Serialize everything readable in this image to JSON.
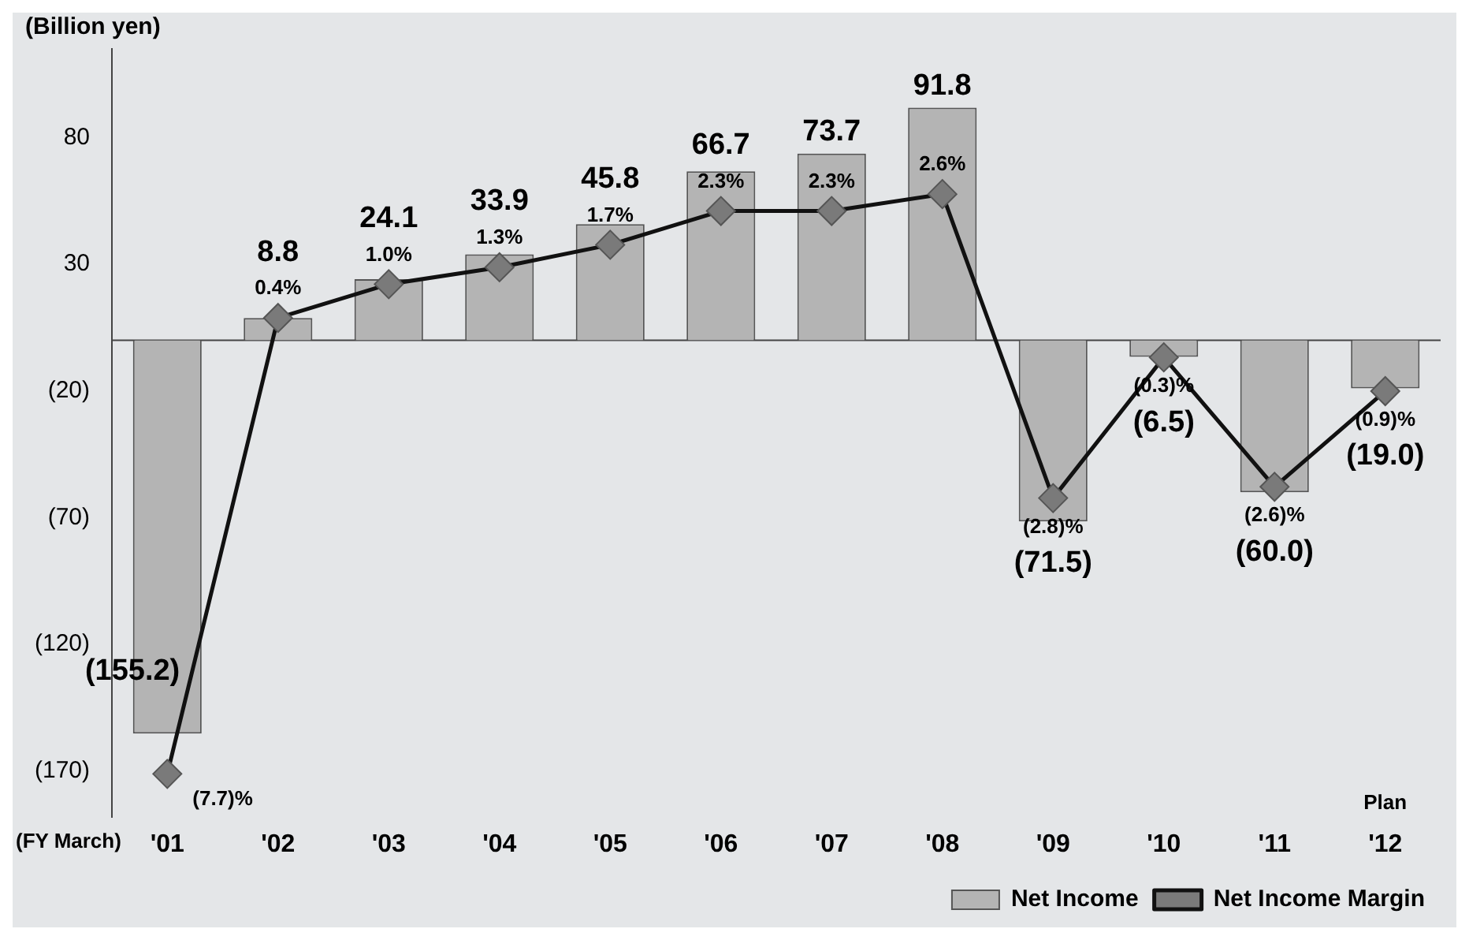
{
  "chart_data": {
    "type": "bar",
    "ylabel": "(Billion yen)",
    "categories": [
      "'01",
      "'02",
      "'03",
      "'04",
      "'05",
      "'06",
      "'07",
      "'08",
      "'09",
      "'10",
      "'11",
      "'12"
    ],
    "series": [
      {
        "name": "Net Income",
        "color": "#b4b4b4",
        "values": [
          -155.2,
          8.8,
          24.1,
          33.9,
          45.8,
          66.7,
          73.7,
          91.8,
          -71.5,
          -6.5,
          -60.0,
          -19.0
        ],
        "value_labels": [
          "(155.2)",
          "8.8",
          "24.1",
          "33.9",
          "45.8",
          "66.7",
          "73.7",
          "91.8",
          "(71.5)",
          "(6.5)",
          "(60.0)",
          "(19.0)"
        ]
      },
      {
        "name": "Net Income Margin",
        "type": "line",
        "axis": "y2",
        "color": "#111111",
        "values": [
          -7.7,
          0.4,
          1.0,
          1.3,
          1.7,
          2.3,
          2.3,
          2.6,
          -2.8,
          -0.3,
          -2.6,
          -0.9
        ],
        "value_labels": [
          "(7.7)%",
          "0.4%",
          "1.0%",
          "1.3%",
          "1.7%",
          "2.3%",
          "2.3%",
          "2.6%",
          "(2.8)%",
          "(0.3)%",
          "(2.6)%",
          "(0.9)%"
        ]
      }
    ],
    "ylim": [
      -188,
      115
    ],
    "yticks": [
      80,
      30,
      {
        "value": -20,
        "label": "(20)"
      },
      {
        "value": -70,
        "label": "(70)"
      },
      {
        "value": -120,
        "label": "(120)"
      },
      {
        "value": -170,
        "label": "(170)"
      }
    ],
    "y2lim": [
      -8.46,
      5.18
    ],
    "marker": "diamond",
    "grid": false,
    "legend": "bottom right",
    "annotations": [
      "(FY March)",
      "Plan"
    ]
  }
}
